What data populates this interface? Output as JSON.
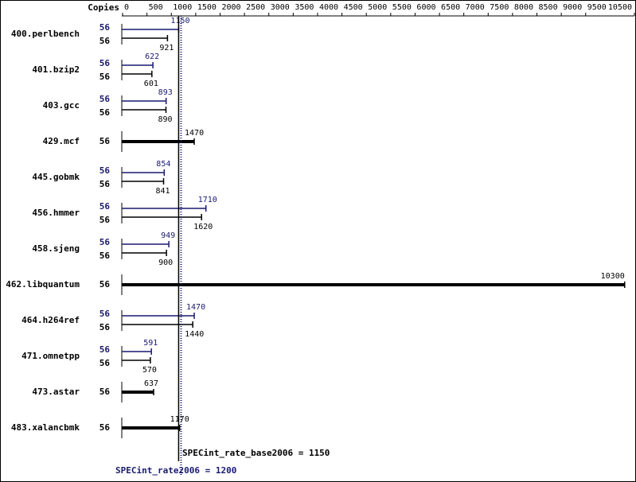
{
  "chart_data": {
    "type": "bar",
    "orientation": "horizontal",
    "axis_title": "Copies",
    "categories": [
      "400.perlbench",
      "401.bzip2",
      "403.gcc",
      "429.mcf",
      "445.gobmk",
      "456.hmmer",
      "458.sjeng",
      "462.libquantum",
      "464.h264ref",
      "471.omnetpp",
      "473.astar",
      "483.xalancbmk"
    ],
    "series": [
      {
        "color": "#191970",
        "values": [
          1150,
          622,
          893,
          null,
          854,
          1710,
          949,
          null,
          1470,
          591,
          null,
          null
        ],
        "copies": [
          56,
          56,
          56,
          null,
          56,
          56,
          56,
          null,
          56,
          56,
          null,
          null
        ]
      },
      {
        "color": "#000000",
        "values": [
          921,
          601,
          890,
          1470,
          841,
          1620,
          900,
          10300,
          1440,
          570,
          637,
          1170
        ],
        "copies": [
          56,
          56,
          56,
          56,
          56,
          56,
          56,
          56,
          56,
          56,
          56,
          56
        ]
      }
    ],
    "xlim": [
      0,
      10500
    ],
    "xticks": [
      0,
      500,
      1000,
      1500,
      2000,
      2500,
      3000,
      3500,
      4000,
      4500,
      5000,
      5500,
      6000,
      6500,
      7000,
      7500,
      8000,
      8500,
      9000,
      9500,
      10500
    ],
    "reference_lines": [
      {
        "label": "SPECint_rate_base2006 = 1150",
        "value": 1150,
        "color": "#000000",
        "style": "solid"
      },
      {
        "label": "SPECint_rate2006 = 1200",
        "value": 1200,
        "color": "#191970",
        "style": "dotted"
      }
    ]
  }
}
